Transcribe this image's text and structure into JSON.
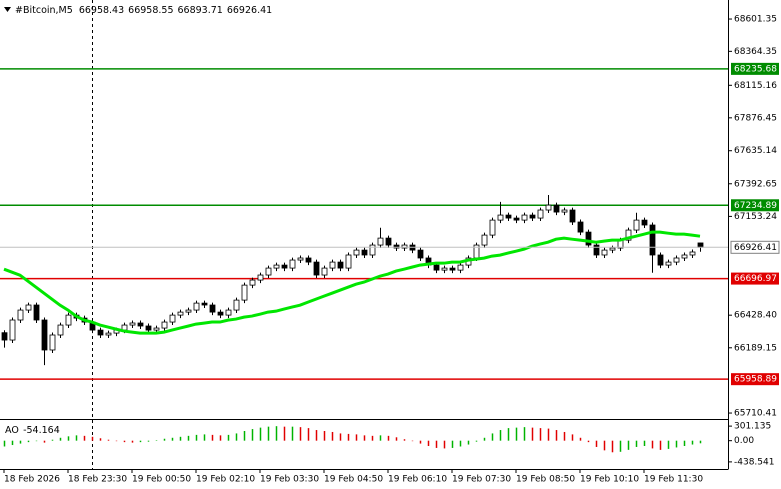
{
  "chart_data": {
    "type": "candlestick",
    "title": "#Bitcoin,M5",
    "categories": [
      "18 Feb 2026",
      null,
      null,
      null,
      null,
      null,
      null,
      null,
      "18 Feb 23:30",
      null,
      null,
      null,
      null,
      null,
      null,
      null,
      "19 Feb 00:50",
      null,
      null,
      null,
      null,
      null,
      null,
      null,
      "19 Feb 02:10",
      null,
      null,
      null,
      null,
      null,
      null,
      null,
      "19 Feb 03:30",
      null,
      null,
      null,
      null,
      null,
      null,
      null,
      "19 Feb 04:50",
      null,
      null,
      null,
      null,
      null,
      null,
      null,
      "19 Feb 06:10",
      null,
      null,
      null,
      null,
      null,
      null,
      null,
      "19 Feb 07:30",
      null,
      null,
      null,
      null,
      null,
      null,
      null,
      "19 Feb 08:50",
      null,
      null,
      null,
      null,
      null,
      null,
      null,
      "19 Feb 10:10",
      null,
      null,
      null,
      null,
      null,
      null,
      null,
      "19 Feb 11:30",
      null,
      null,
      null,
      null,
      null,
      null,
      null
    ],
    "open": [
      66300,
      66246,
      66393,
      66466,
      66503,
      66393,
      66173,
      66283,
      66356,
      66429,
      66407,
      66378,
      66319,
      66283,
      66297,
      66319,
      66356,
      66371,
      66349,
      66319,
      66334,
      66378,
      66429,
      66451,
      66466,
      66517,
      66503,
      66451,
      66429,
      66466,
      66539,
      66649,
      66686,
      66723,
      66774,
      66796,
      66774,
      66833,
      66848,
      66818,
      66723,
      66774,
      66818,
      66774,
      66870,
      66906,
      66870,
      66943,
      66994,
      66943,
      66921,
      66943,
      66906,
      66848,
      66796,
      66759,
      66774,
      66759,
      66796,
      66848,
      66943,
      67016,
      67126,
      67163,
      67141,
      67126,
      67163,
      67141,
      67200,
      67236,
      67185,
      67200,
      67112,
      67038,
      66943,
      66870,
      66906,
      66921,
      66979,
      67053,
      67126,
      67090,
      66870,
      66796,
      66818,
      66848,
      66870,
      66958.43
    ],
    "high": [
      66318,
      66411,
      66484,
      66521,
      66521,
      66411,
      66301,
      66374,
      66447,
      66447,
      66425,
      66396,
      66337,
      66315,
      66337,
      66374,
      66389,
      66389,
      66367,
      66352,
      66396,
      66447,
      66469,
      66484,
      66535,
      66535,
      66521,
      66469,
      66484,
      66557,
      66667,
      66704,
      66741,
      66792,
      66814,
      66814,
      66851,
      66866,
      66866,
      66836,
      66792,
      66836,
      66836,
      66888,
      66924,
      66924,
      66961,
      67070,
      67012,
      66961,
      66961,
      66961,
      66924,
      66866,
      66814,
      66792,
      66792,
      66814,
      66866,
      66961,
      67034,
      67144,
      67260,
      67181,
      67159,
      67181,
      67181,
      67218,
      67310,
      67254,
      67218,
      67218,
      67130,
      67056,
      66961,
      66924,
      66939,
      66997,
      67071,
      67180,
      67144,
      67108,
      66888,
      66836,
      66866,
      66888,
      66910,
      66958.55
    ],
    "low": [
      66190,
      66224,
      66371,
      66444,
      66371,
      66062,
      66151,
      66261,
      66334,
      66385,
      66356,
      66297,
      66261,
      66261,
      66275,
      66297,
      66334,
      66327,
      66297,
      66297,
      66312,
      66356,
      66407,
      66429,
      66444,
      66481,
      66429,
      66407,
      66407,
      66444,
      66517,
      66627,
      66664,
      66701,
      66752,
      66752,
      66752,
      66811,
      66796,
      66701,
      66701,
      66752,
      66752,
      66752,
      66848,
      66848,
      66848,
      66921,
      66921,
      66899,
      66899,
      66884,
      66826,
      66774,
      66737,
      66737,
      66737,
      66737,
      66774,
      66826,
      66921,
      66994,
      67104,
      67119,
      67104,
      67104,
      67119,
      67119,
      67178,
      67163,
      67163,
      67090,
      67016,
      66921,
      66848,
      66848,
      66884,
      66899,
      66957,
      67031,
      67068,
      66740,
      66774,
      66774,
      66796,
      66826,
      66848,
      66893.71
    ],
    "close": [
      66246,
      66393,
      66466,
      66503,
      66393,
      66173,
      66283,
      66356,
      66429,
      66407,
      66378,
      66319,
      66283,
      66297,
      66319,
      66356,
      66371,
      66349,
      66319,
      66334,
      66378,
      66429,
      66451,
      66466,
      66517,
      66503,
      66451,
      66429,
      66466,
      66539,
      66649,
      66686,
      66723,
      66774,
      66796,
      66774,
      66833,
      66848,
      66818,
      66723,
      66774,
      66818,
      66774,
      66870,
      66906,
      66870,
      66943,
      66994,
      66943,
      66921,
      66943,
      66906,
      66848,
      66796,
      66759,
      66774,
      66759,
      66796,
      66848,
      66943,
      67016,
      67126,
      67163,
      67141,
      67126,
      67163,
      67141,
      67200,
      67236,
      67185,
      67200,
      67112,
      67038,
      66943,
      66870,
      66906,
      66921,
      66979,
      67053,
      67126,
      67090,
      66870,
      66796,
      66818,
      66848,
      66870,
      66892,
      66926.41
    ],
    "ma": {
      "color": "#00e600",
      "values": [
        66766,
        66744,
        66722,
        66678,
        66634,
        66590,
        66546,
        66502,
        66466,
        66422,
        66392,
        66378,
        66356,
        66341,
        66326,
        66312,
        66304,
        66297,
        66297,
        66297,
        66304,
        66319,
        66334,
        66348,
        66363,
        66370,
        66378,
        66378,
        66392,
        66400,
        66414,
        66422,
        66436,
        66451,
        66458,
        66473,
        66488,
        66502,
        66524,
        66546,
        66568,
        66590,
        66612,
        66634,
        66656,
        66671,
        66693,
        66715,
        66730,
        66752,
        66766,
        66781,
        66796,
        66803,
        66810,
        66810,
        66818,
        66818,
        66832,
        66840,
        66847,
        66862,
        66869,
        66884,
        66898,
        66913,
        66935,
        66950,
        66964,
        66986,
        66994,
        66986,
        66979,
        66972,
        66964,
        66972,
        66979,
        66979,
        66994,
        67008,
        67023,
        67038,
        67038,
        67030,
        67023,
        67023,
        67016,
        67008
      ]
    },
    "ylim": [
      65674,
      68741
    ],
    "yticks": [
      68601.35,
      68364.35,
      68115.16,
      67876.45,
      67635.14,
      67392.65,
      67153.24,
      {
        "value": 66428.4,
        "label": "66428.40"
      },
      66189.15,
      65710.41
    ],
    "levels": [
      {
        "value": 68235.68,
        "color": "#008c00"
      },
      {
        "value": 67234.89,
        "color": "#008c00"
      },
      {
        "value": 66696.97,
        "color": "#e00000"
      },
      {
        "value": 65958.89,
        "color": "#e00000"
      }
    ],
    "ao": {
      "name": "AO",
      "up_color": "#00b400",
      "down_color": "#e00000",
      "values": [
        -120,
        -90,
        -60,
        -30,
        -10,
        -40,
        20,
        60,
        90,
        110,
        100,
        80,
        50,
        20,
        -10,
        -30,
        -40,
        -30,
        -20,
        10,
        40,
        60,
        80,
        100,
        120,
        130,
        120,
        110,
        120,
        150,
        200,
        240,
        270,
        290,
        300,
        290,
        290,
        280,
        260,
        220,
        200,
        180,
        150,
        140,
        130,
        110,
        100,
        110,
        100,
        70,
        30,
        -10,
        -60,
        -110,
        -150,
        -160,
        -150,
        -120,
        -80,
        -20,
        60,
        150,
        220,
        260,
        270,
        280,
        270,
        260,
        250,
        220,
        180,
        130,
        60,
        -30,
        -130,
        -200,
        -240,
        -230,
        -190,
        -130,
        -110,
        -160,
        -190,
        -170,
        -140,
        -110,
        -80,
        -54.164
      ],
      "ylim": [
        -565,
        407
      ],
      "yticks": [
        301.135,
        {
          "value": 0,
          "label": "0.00"
        },
        -438.541
      ]
    }
  }
}
